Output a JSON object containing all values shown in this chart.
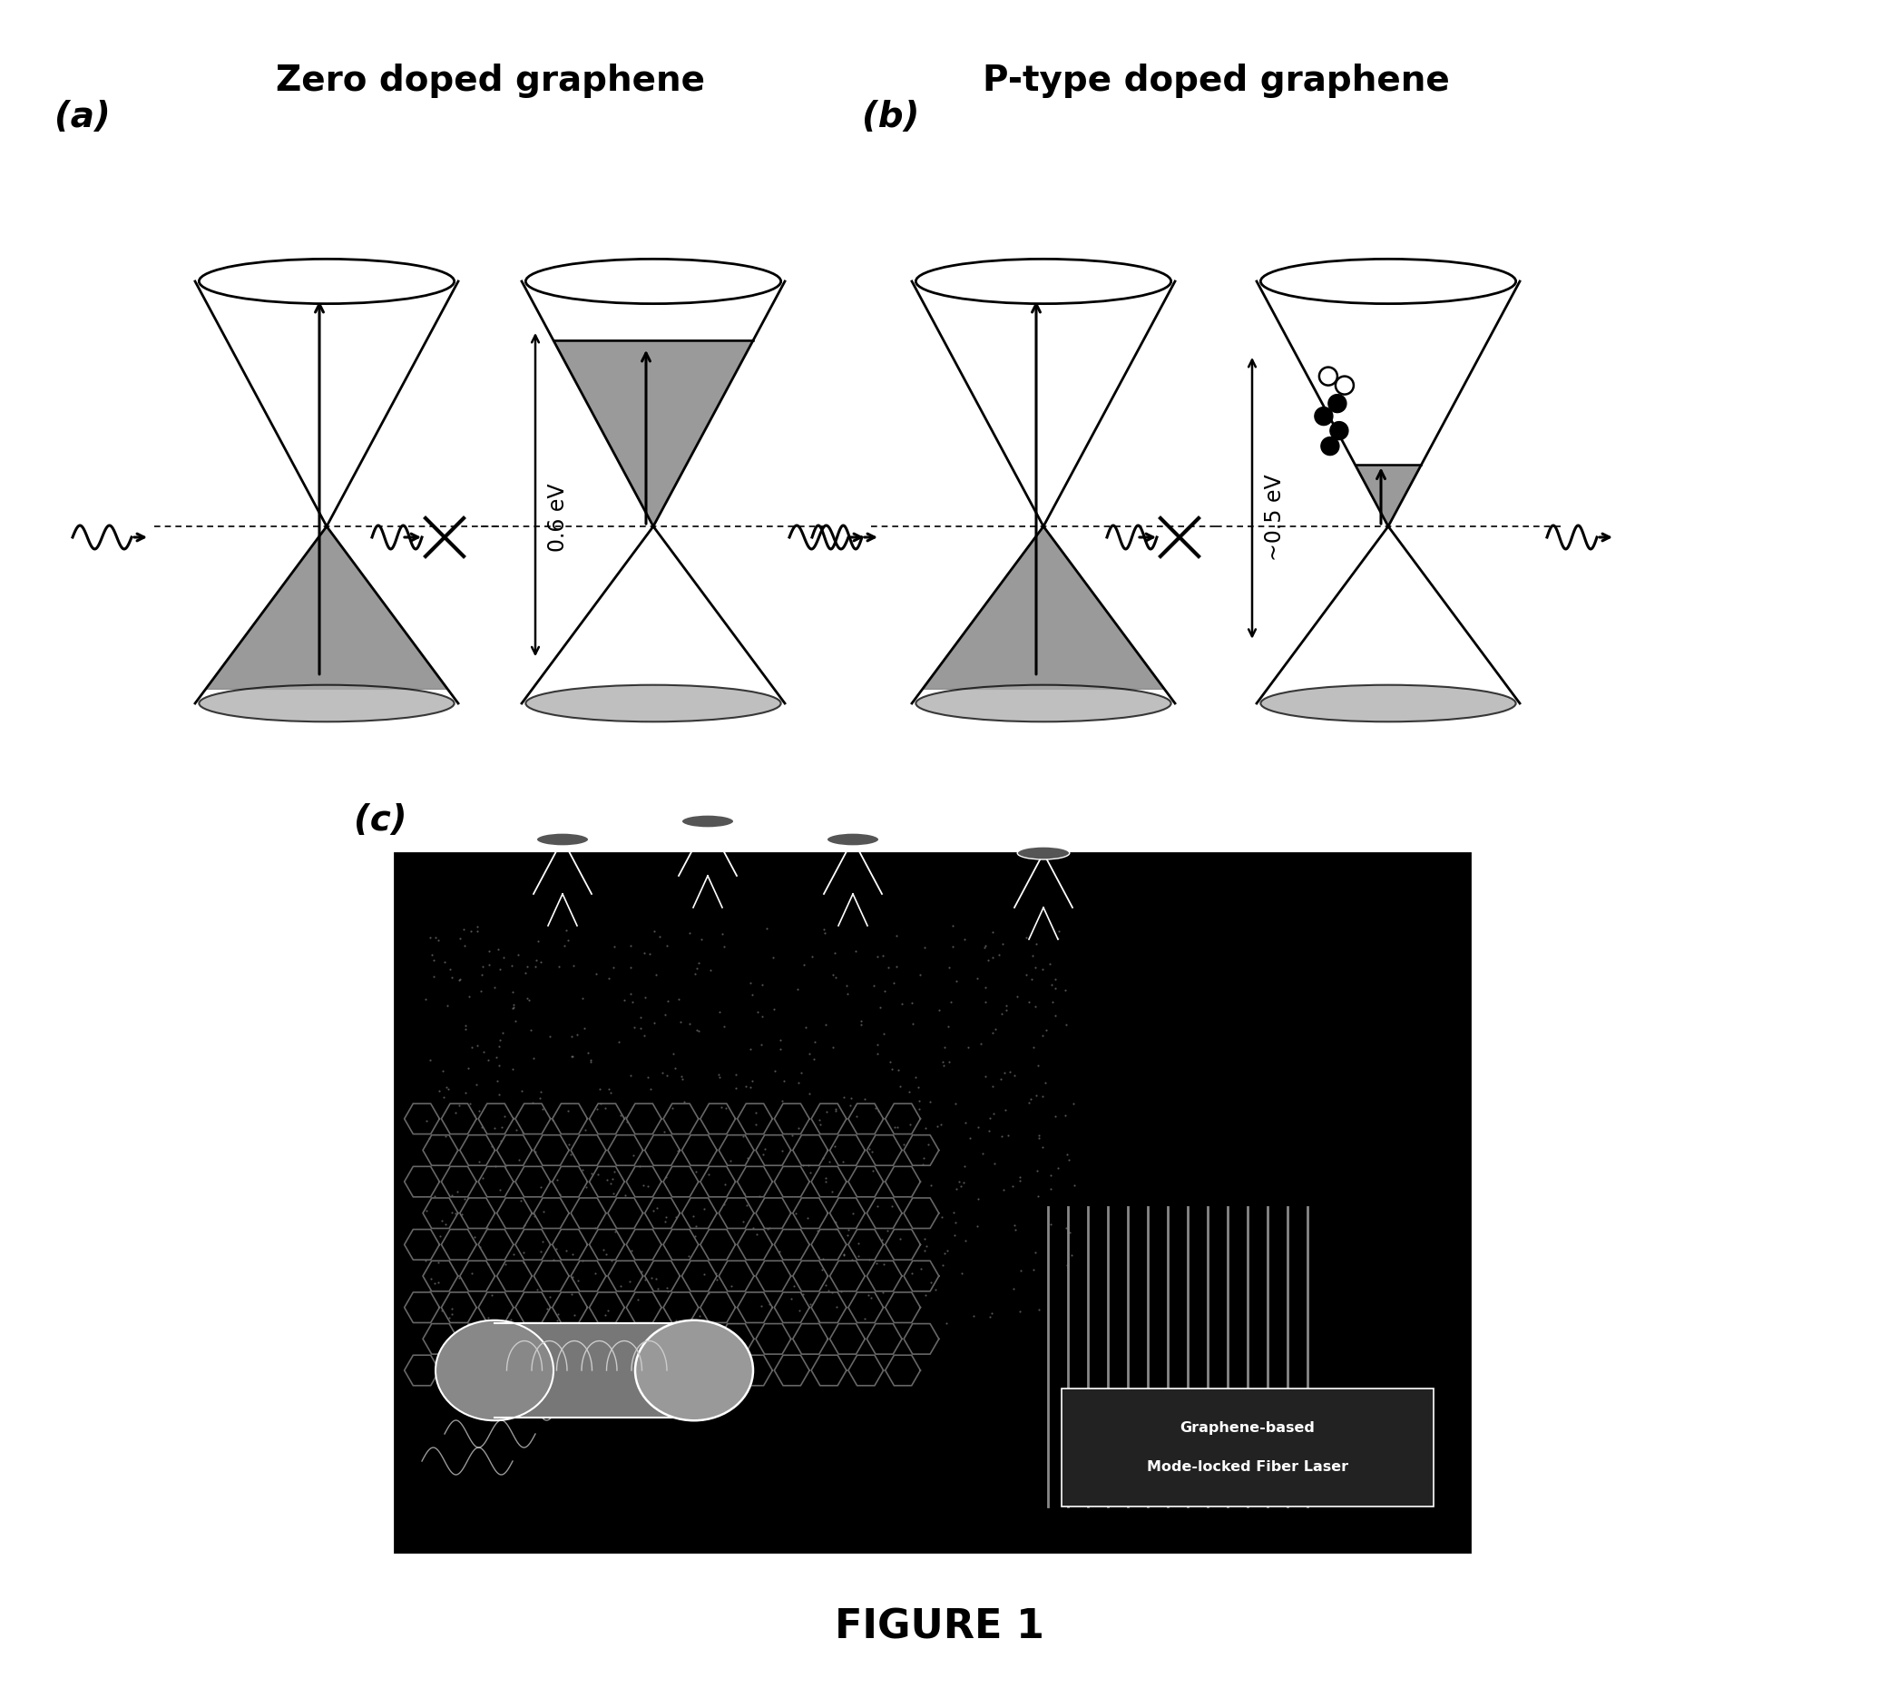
{
  "figure_title": "FIGURE 1",
  "panel_a_label": "(a)",
  "panel_b_label": "(b)",
  "panel_c_label": "(c)",
  "title_zero": "Zero doped graphene",
  "title_ptype": "P-type doped graphene",
  "energy_a": "0.6 eV",
  "energy_b": "~0.5 eV",
  "bg": "#ffffff",
  "shade_gray": "#888888",
  "bottom_ellipse_color": "#aaaaaa",
  "cone_lw": 2.0
}
